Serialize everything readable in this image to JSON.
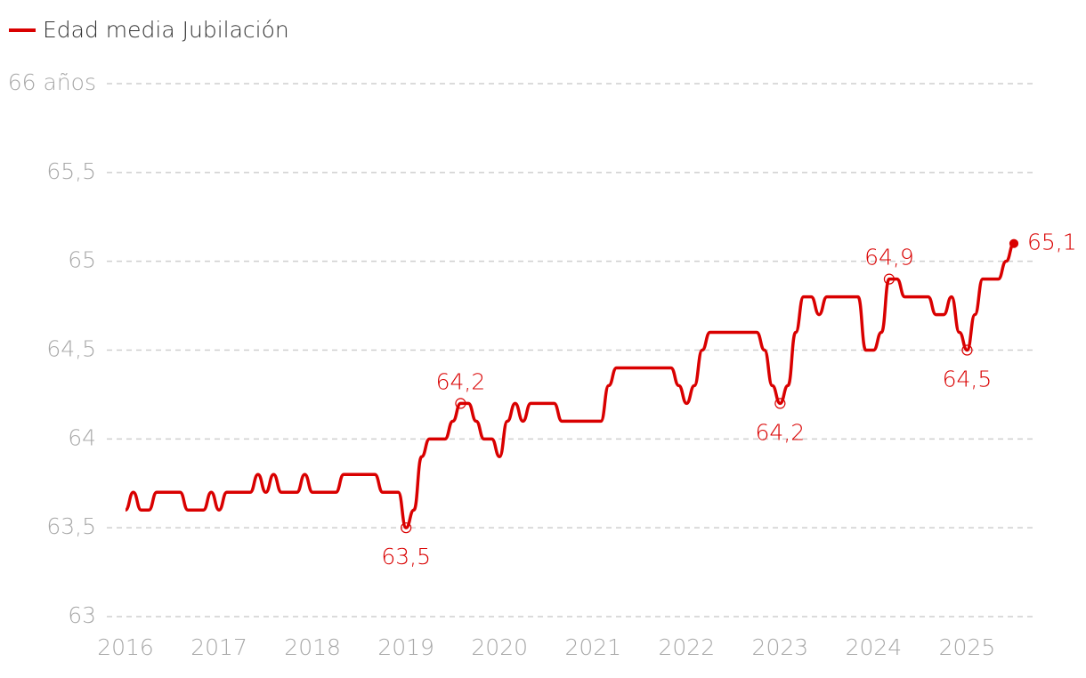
{
  "chart_data": {
    "type": "line",
    "legend": "top-left",
    "series": [
      {
        "name": "Edad media Jubilación",
        "color": "#d90000",
        "x": [
          2016.0,
          2016.0833,
          2016.1667,
          2016.25,
          2016.3333,
          2016.4167,
          2016.5,
          2016.5833,
          2016.6667,
          2016.75,
          2016.8333,
          2016.9167,
          2017.0,
          2017.0833,
          2017.1667,
          2017.25,
          2017.3333,
          2017.4167,
          2017.5,
          2017.5833,
          2017.6667,
          2017.75,
          2017.8333,
          2017.9167,
          2018.0,
          2018.0833,
          2018.1667,
          2018.25,
          2018.3333,
          2018.4167,
          2018.5,
          2018.5833,
          2018.6667,
          2018.75,
          2018.8333,
          2018.9167,
          2019.0,
          2019.0833,
          2019.1667,
          2019.25,
          2019.3333,
          2019.4167,
          2019.5,
          2019.5833,
          2019.6667,
          2019.75,
          2019.8333,
          2019.9167,
          2020.0,
          2020.0833,
          2020.1667,
          2020.25,
          2020.3333,
          2020.4167,
          2020.5,
          2020.5833,
          2020.6667,
          2020.75,
          2020.8333,
          2020.9167,
          2021.0,
          2021.0833,
          2021.1667,
          2021.25,
          2021.3333,
          2021.4167,
          2021.5,
          2021.5833,
          2021.6667,
          2021.75,
          2021.8333,
          2021.9167,
          2022.0,
          2022.0833,
          2022.1667,
          2022.25,
          2022.3333,
          2022.4167,
          2022.5,
          2022.5833,
          2022.6667,
          2022.75,
          2022.8333,
          2022.9167,
          2023.0,
          2023.0833,
          2023.1667,
          2023.25,
          2023.3333,
          2023.4167,
          2023.5,
          2023.5833,
          2023.6667,
          2023.75,
          2023.8333,
          2023.9167,
          2024.0,
          2024.0833,
          2024.1667,
          2024.25,
          2024.3333,
          2024.4167,
          2024.5,
          2024.5833,
          2024.6667,
          2024.75,
          2024.8333,
          2024.9167,
          2025.0,
          2025.0833,
          2025.1667,
          2025.25,
          2025.3333,
          2025.4167,
          2025.5
        ],
        "values": [
          63.6,
          63.7,
          63.6,
          63.6,
          63.7,
          63.7,
          63.7,
          63.7,
          63.6,
          63.6,
          63.6,
          63.7,
          63.6,
          63.7,
          63.7,
          63.7,
          63.7,
          63.8,
          63.7,
          63.8,
          63.7,
          63.7,
          63.7,
          63.8,
          63.7,
          63.7,
          63.7,
          63.7,
          63.8,
          63.8,
          63.8,
          63.8,
          63.8,
          63.7,
          63.7,
          63.7,
          63.5,
          63.6,
          63.9,
          64.0,
          64.0,
          64.0,
          64.1,
          64.2,
          64.2,
          64.1,
          64.0,
          64.0,
          63.9,
          64.1,
          64.2,
          64.1,
          64.2,
          64.2,
          64.2,
          64.2,
          64.1,
          64.1,
          64.1,
          64.1,
          64.1,
          64.1,
          64.3,
          64.4,
          64.4,
          64.4,
          64.4,
          64.4,
          64.4,
          64.4,
          64.4,
          64.3,
          64.2,
          64.3,
          64.5,
          64.6,
          64.6,
          64.6,
          64.6,
          64.6,
          64.6,
          64.6,
          64.5,
          64.3,
          64.2,
          64.3,
          64.6,
          64.8,
          64.8,
          64.7,
          64.8,
          64.8,
          64.8,
          64.8,
          64.8,
          64.5,
          64.5,
          64.6,
          64.9,
          64.9,
          64.8,
          64.8,
          64.8,
          64.8,
          64.7,
          64.7,
          64.8,
          64.6,
          64.5,
          64.7,
          64.9,
          64.9,
          64.9,
          65.0,
          65.1
        ],
        "value_labels": [
          null,
          null,
          null,
          null,
          null,
          null,
          null,
          null,
          null,
          null,
          null,
          null,
          null,
          null,
          null,
          null,
          null,
          null,
          null,
          null,
          null,
          null,
          null,
          null,
          null,
          null,
          null,
          null,
          null,
          null,
          null,
          null,
          null,
          null,
          null,
          null,
          "63,5",
          null,
          null,
          null,
          null,
          null,
          null,
          "64,2",
          null,
          null,
          null,
          null,
          null,
          null,
          null,
          null,
          null,
          null,
          null,
          null,
          null,
          null,
          null,
          null,
          null,
          null,
          null,
          null,
          null,
          null,
          null,
          null,
          null,
          null,
          null,
          null,
          null,
          null,
          null,
          null,
          null,
          null,
          null,
          null,
          null,
          null,
          null,
          null,
          "64,2",
          null,
          null,
          null,
          null,
          null,
          null,
          null,
          null,
          null,
          null,
          null,
          null,
          null,
          "64,9",
          null,
          null,
          null,
          null,
          null,
          null,
          null,
          null,
          null,
          "64,5",
          null,
          null,
          null,
          null,
          null,
          "65,1"
        ]
      }
    ],
    "xlim": [
      2015.8,
      2025.7
    ],
    "xticks": [
      2016,
      2017,
      2018,
      2019,
      2020,
      2021,
      2022,
      2023,
      2024,
      2025
    ],
    "ylim": [
      63,
      66
    ],
    "yticks": [
      63,
      {
        "value": 63.5,
        "label": "63,5"
      },
      64,
      {
        "value": 64.5,
        "label": "64,5"
      },
      65,
      {
        "value": 65.5,
        "label": "65,5"
      },
      {
        "value": 66,
        "label": "66 años"
      }
    ],
    "grid": true
  }
}
